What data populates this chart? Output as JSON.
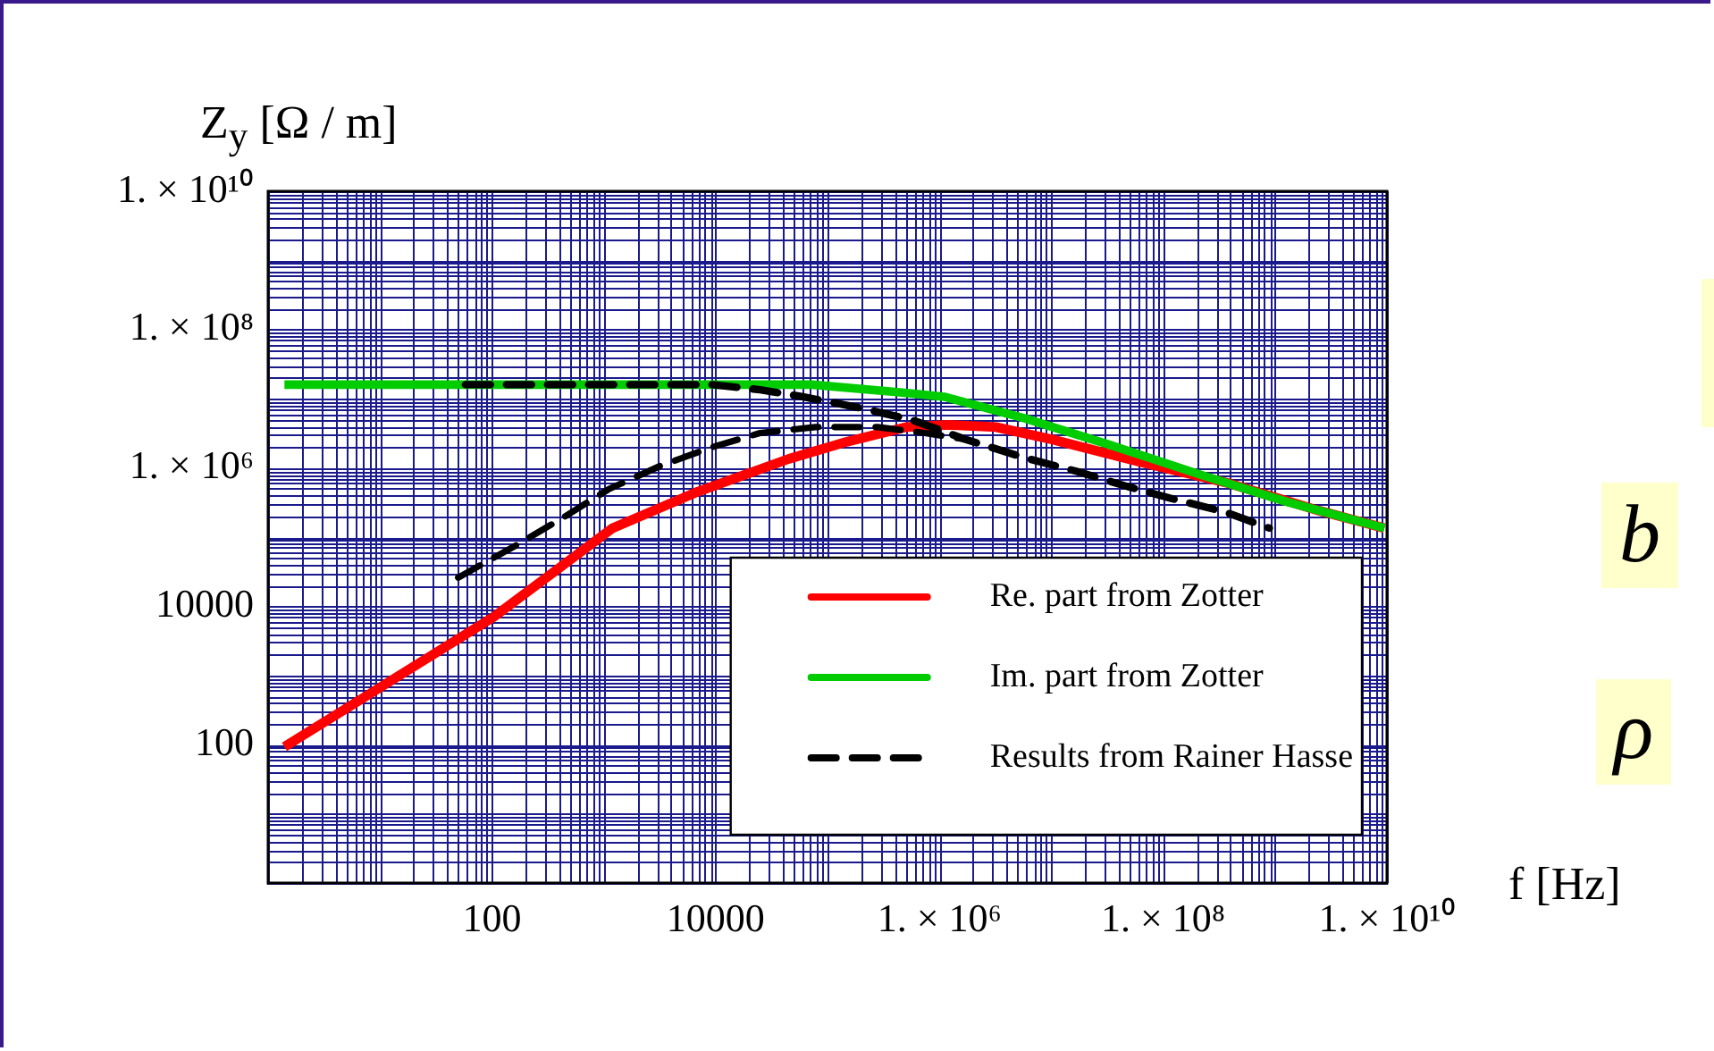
{
  "chart_data": {
    "type": "line",
    "xlabel": "f [Hz]",
    "ylabel": "Z$_{y}$  [Ω / m]",
    "log": "xy",
    "grid": true,
    "legend": "bottom right",
    "marker": "none",
    "xlim": [
      1,
      10000000000
    ],
    "ylim": [
      1,
      10000000000
    ],
    "xticks": [
      100,
      10000,
      {
        "value": 1000000,
        "label": "1. × 10⁶"
      },
      {
        "value": 100000000,
        "label": "1. × 10⁸"
      },
      {
        "value": 10000000000,
        "label": "1. × 10¹⁰"
      }
    ],
    "yticks": [
      100,
      10000,
      {
        "value": 1000000,
        "label": "1. × 10⁶"
      },
      {
        "value": 100000000,
        "label": "1. × 10⁸"
      },
      {
        "value": 10000000000,
        "label": "1. × 10¹⁰"
      }
    ],
    "series": [
      {
        "name": "Re. part from Zotter",
        "color": "#ff0000",
        "line_style": "solid",
        "x": [
          1.4,
          105,
          1200,
          6600,
          45000,
          150000,
          510000,
          1200000,
          3200000,
          10000000,
          65000000,
          400000000,
          2500000000,
          9500000000
        ],
        "values": [
          93,
          7100,
          135000,
          440000,
          1350000,
          2400000,
          3900000,
          4200000,
          3900000,
          2600000,
          1200000,
          590000,
          240000,
          135000
        ]
      },
      {
        "name": "Im. part from Zotter",
        "color": "#00cc00",
        "line_style": "solid",
        "x": [
          1.4,
          45000,
          72000,
          400000,
          1100000,
          5800000,
          35000000,
          220000000,
          1300000000,
          9500000000
        ],
        "values": [
          16000000,
          16000000,
          16000000,
          12600000,
          10700000,
          5200000,
          2100000,
          790000,
          320000,
          135000
        ]
      },
      {
        "name": "Results from Rainer Hasse",
        "color": "#000000",
        "line_style": "dashed",
        "x": [
          58,
          9300,
          25000,
          60000,
          195000,
          580000,
          1700000,
          5800000,
          17000000,
          46000000,
          120000000,
          360000000,
          890000000
        ],
        "values": [
          16000000,
          16000000,
          13500000,
          10700000,
          7400000,
          4900000,
          2600000,
          1400000,
          890000,
          550000,
          360000,
          230000,
          135000
        ]
      },
      {
        "color": "#000000",
        "line_style": "dashed",
        "x": [
          50,
          160,
          430,
          1100,
          3200,
          9300,
          25000,
          78000,
          280000,
          740000,
          1700000
        ],
        "values": [
          26000,
          74000,
          190000,
          490000,
          1070000,
          2000000,
          3200000,
          3900000,
          3900000,
          3200000,
          2600000
        ]
      }
    ],
    "annotations": [
      "b",
      "ρ"
    ]
  }
}
